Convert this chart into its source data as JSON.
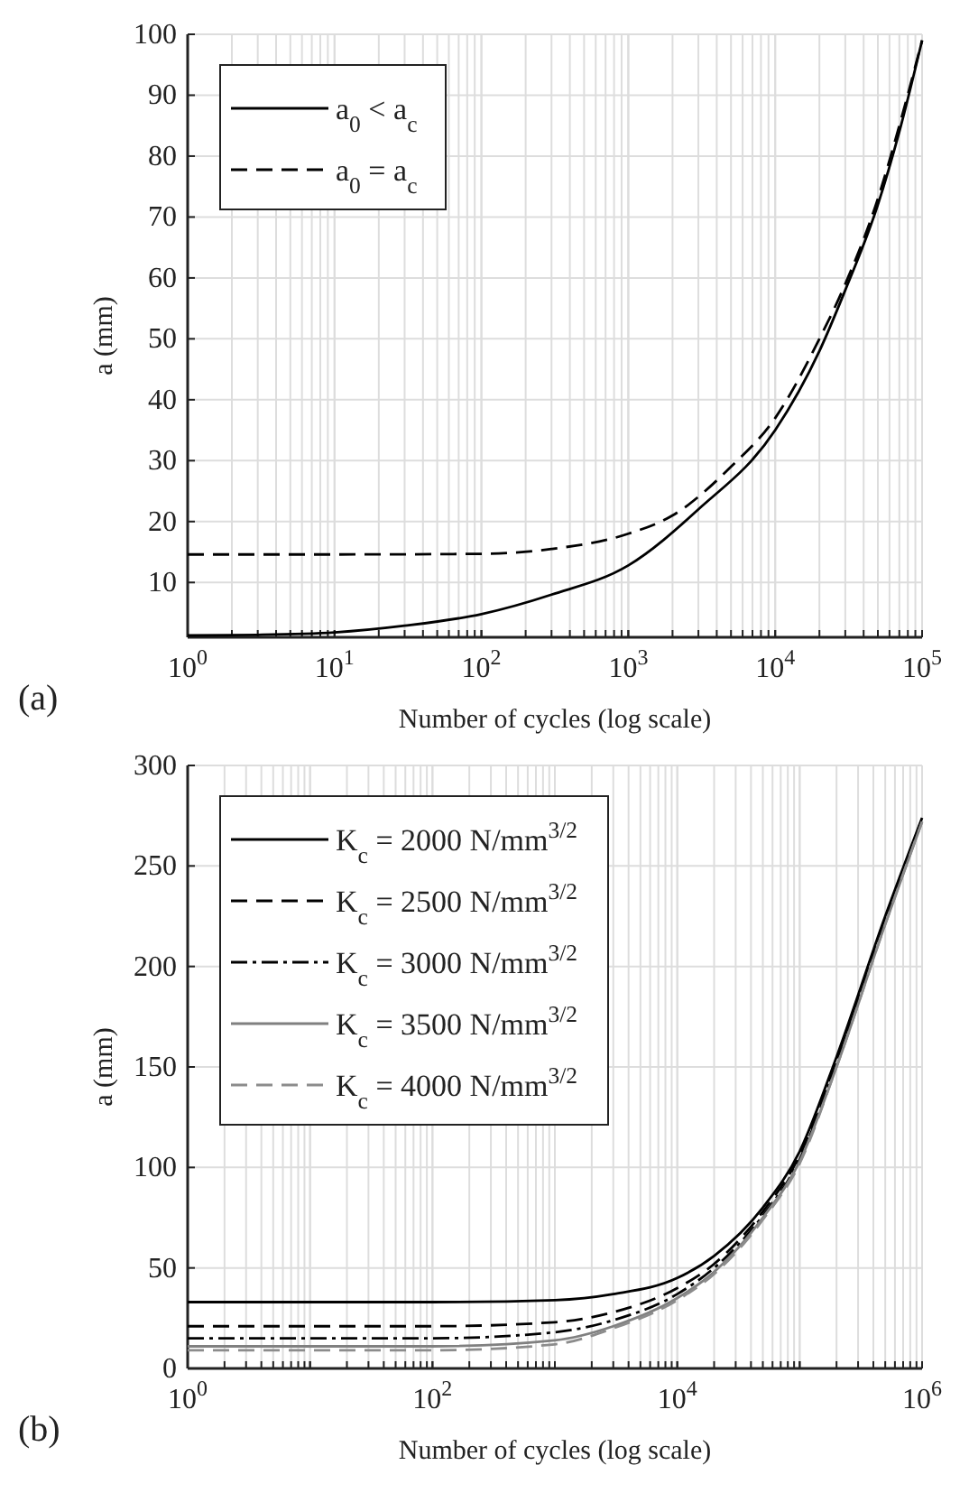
{
  "chart_data": [
    {
      "type": "line",
      "xlabel": "Number of cycles (log scale)",
      "ylabel": "a (mm)",
      "log": "x",
      "grid": true,
      "legend": "top left",
      "annotations": [
        "(a)"
      ],
      "xlim": [
        1,
        100000
      ],
      "ylim": [
        1,
        100
      ],
      "xticks": [
        {
          "value": 1,
          "label": "10$^{0}$"
        },
        {
          "value": 10,
          "label": "10$^{1}$"
        },
        {
          "value": 100,
          "label": "10$^{2}$"
        },
        {
          "value": 1000,
          "label": "10$^{3}$"
        },
        {
          "value": 10000,
          "label": "10$^{4}$"
        },
        {
          "value": 100000,
          "label": "10$^{5}$"
        }
      ],
      "yticks": [
        10,
        20,
        30,
        40,
        50,
        60,
        70,
        80,
        90,
        100
      ],
      "series": [
        {
          "name": "a$_{0}$ < a$_{c}$",
          "color": "#000000",
          "line_style": "solid",
          "x": [
            1,
            3,
            10,
            30,
            100,
            300,
            1000,
            3000,
            10000,
            20000,
            30000,
            50000,
            70000,
            100000
          ],
          "values": [
            1.3,
            1.4,
            1.8,
            2.9,
            4.8,
            8,
            12.8,
            22,
            35,
            48,
            58,
            72,
            84,
            99
          ]
        },
        {
          "name": "a$_{0}$ = a$_{c}$",
          "color": "#000000",
          "line_style": "dashed",
          "x": [
            1,
            10,
            100,
            300,
            1000,
            2000,
            5000,
            10000,
            20000,
            30000,
            50000,
            70000,
            100000
          ],
          "values": [
            14.6,
            14.6,
            14.7,
            15.5,
            18,
            21,
            29,
            37,
            50,
            59,
            73,
            85,
            99
          ]
        }
      ]
    },
    {
      "type": "line",
      "xlabel": "Number of cycles (log scale)",
      "ylabel": "a (mm)",
      "log": "x",
      "grid": true,
      "legend": "top left",
      "annotations": [
        "(b)"
      ],
      "xlim": [
        1,
        1000000
      ],
      "ylim": [
        0,
        300
      ],
      "xticks": [
        {
          "value": 1,
          "label": "10$^{0}$"
        },
        {
          "value": 100,
          "label": "10$^{2}$"
        },
        {
          "value": 10000,
          "label": "10$^{4}$"
        },
        {
          "value": 1000000,
          "label": "10$^{6}$"
        }
      ],
      "yticks": [
        0,
        50,
        100,
        150,
        200,
        250,
        300
      ],
      "series": [
        {
          "name": "K$_{c}$ = 2000 N/mm$^{3/2}$",
          "color": "#000000",
          "line_style": "solid",
          "x": [
            1,
            100,
            1000,
            3000,
            10000,
            20000,
            50000,
            100000,
            200000,
            500000,
            1000000
          ],
          "values": [
            33,
            33,
            34,
            37,
            45,
            56,
            80,
            108,
            155,
            225,
            274
          ]
        },
        {
          "name": "K$_{c}$ = 2500 N/mm$^{3/2}$",
          "color": "#000000",
          "line_style": "dashed",
          "x": [
            1,
            100,
            1000,
            3000,
            10000,
            20000,
            50000,
            100000,
            200000,
            500000,
            1000000
          ],
          "values": [
            21,
            21,
            23,
            28,
            40,
            52,
            78,
            106,
            153,
            223,
            273
          ]
        },
        {
          "name": "K$_{c}$ = 3000 N/mm$^{3/2}$",
          "color": "#000000",
          "line_style": "dashdot",
          "x": [
            1,
            100,
            1000,
            3000,
            10000,
            20000,
            50000,
            100000,
            200000,
            500000,
            1000000
          ],
          "values": [
            15,
            15,
            18,
            24,
            37,
            50,
            76,
            104,
            152,
            222,
            273
          ]
        },
        {
          "name": "K$_{c}$ = 3500 N/mm$^{3/2}$",
          "color": "#808080",
          "line_style": "solid",
          "x": [
            1,
            100,
            1000,
            3000,
            10000,
            20000,
            50000,
            100000,
            200000,
            500000,
            1000000
          ],
          "values": [
            11,
            11,
            14,
            21,
            35,
            48,
            75,
            103,
            150,
            221,
            272
          ]
        },
        {
          "name": "K$_{c}$ = 4000 N/mm$^{3/2}$",
          "color": "#8c8c8c",
          "line_style": "dashed",
          "x": [
            1,
            100,
            1000,
            3000,
            10000,
            20000,
            50000,
            100000,
            200000,
            500000,
            1000000
          ],
          "values": [
            9,
            9,
            12,
            20,
            34,
            47,
            74,
            102,
            150,
            221,
            272
          ]
        }
      ]
    }
  ]
}
